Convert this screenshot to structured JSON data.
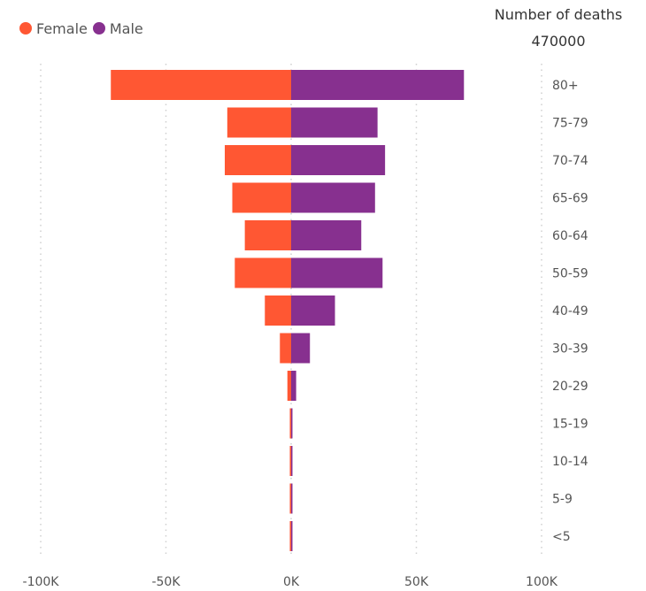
{
  "legend": {
    "female_label": "Female",
    "male_label": "Male",
    "female_color": "#FF5733",
    "male_color": "#87308F"
  },
  "kpi": {
    "label": "Number of deaths",
    "value": "470000"
  },
  "chart_data": {
    "type": "bar",
    "orientation": "horizontal",
    "style": "population-pyramid",
    "categories": [
      "80+",
      "75-79",
      "70-74",
      "65-69",
      "60-64",
      "50-59",
      "40-49",
      "30-39",
      "20-29",
      "15-19",
      "10-14",
      "5-9",
      "<5"
    ],
    "series": [
      {
        "name": "Female",
        "color": "#FF5733",
        "values": [
          -72000,
          -25500,
          -26500,
          -23500,
          -18500,
          -22500,
          -10500,
          -4500,
          -1500,
          -200,
          -100,
          -100,
          -100
        ]
      },
      {
        "name": "Male",
        "color": "#87308F",
        "values": [
          69000,
          34500,
          37500,
          33500,
          28000,
          36500,
          17500,
          7500,
          2000,
          400,
          150,
          100,
          300
        ]
      }
    ],
    "xlim": [
      -100000,
      100000
    ],
    "xticks": [
      -100000,
      -50000,
      0,
      50000,
      100000
    ],
    "xtick_labels": [
      "-100K",
      "-50K",
      "0K",
      "50K",
      "100K"
    ],
    "grid": "vertical-dotted",
    "legend_position": "top-left"
  }
}
